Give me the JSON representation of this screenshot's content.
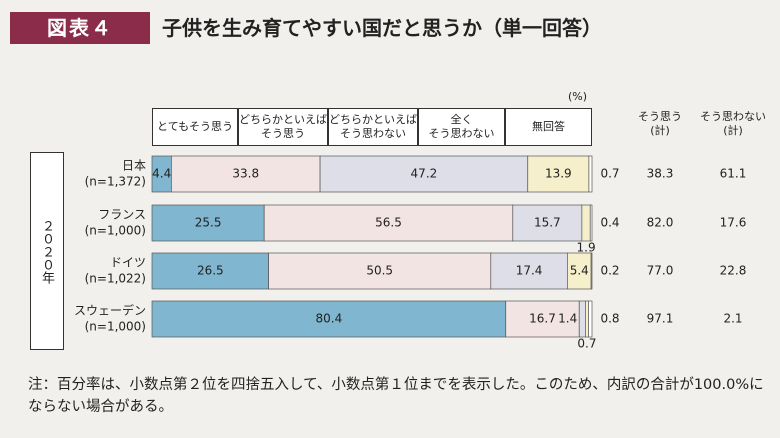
{
  "header": {
    "badge": "図表４",
    "title": "子供を生み育てやすい国だと思うか（単一回答）"
  },
  "chart_data": {
    "type": "stacked-bar",
    "orientation": "horizontal",
    "unit": "(%)",
    "group_label": "２０２０年",
    "categories": [
      "日本",
      "フランス",
      "ドイツ",
      "スウェーデン"
    ],
    "sample_sizes": [
      "(n=1,372)",
      "(n=1,000)",
      "(n=1,022)",
      "(n=1,000)"
    ],
    "xlim": [
      0,
      100
    ],
    "series": [
      {
        "name": "とてもそう思う",
        "color": "#80b6cf",
        "values": [
          4.4,
          25.5,
          26.5,
          80.4
        ]
      },
      {
        "name": "どちらかといえば\nそう思う",
        "color": "#f3e4e4",
        "values": [
          33.8,
          56.5,
          50.5,
          16.7
        ]
      },
      {
        "name": "どちらかといえば\nそう思わない",
        "color": "#dddee7",
        "values": [
          47.2,
          15.7,
          17.4,
          1.4
        ]
      },
      {
        "name": "全く\nそう思わない",
        "color": "#f5efcb",
        "values": [
          13.9,
          1.9,
          5.4,
          0.7
        ]
      },
      {
        "name": "無回答",
        "color": "#ffffff",
        "values": [
          0.7,
          0.4,
          0.2,
          0.8
        ]
      }
    ],
    "totals": [
      {
        "name": "そう思う\n(計)",
        "values": [
          38.3,
          82.0,
          77.0,
          97.1
        ],
        "value_labels": [
          "38.3",
          "82.0",
          "77.0",
          "97.1"
        ]
      },
      {
        "name": "そう思わない\n(計)",
        "values": [
          61.1,
          17.6,
          22.8,
          2.1
        ],
        "value_labels": [
          "61.1",
          "17.6",
          "22.8",
          "2.1"
        ]
      }
    ]
  },
  "note": "注：百分率は、小数点第２位を四捨五入して、小数点第１位までを表示した。このため、内訳の合計が100.0%にならない場合がある。"
}
